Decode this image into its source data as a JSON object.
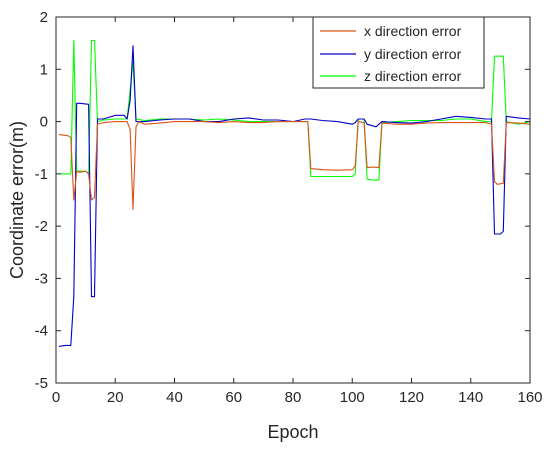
{
  "chart_data": {
    "type": "line",
    "xlabel": "Epoch",
    "ylabel": "Coordinate error(m)",
    "xlim": [
      0,
      160
    ],
    "ylim": [
      -5,
      2
    ],
    "xticks": [
      0,
      20,
      40,
      60,
      80,
      100,
      120,
      140,
      160
    ],
    "yticks": [
      -5,
      -4,
      -3,
      -2,
      -1,
      0,
      1,
      2
    ],
    "grid": false,
    "legend_position": "top-right",
    "series": [
      {
        "name": "x direction error",
        "color": "#d95319",
        "points": [
          [
            1,
            -0.25
          ],
          [
            4,
            -0.27
          ],
          [
            5,
            -0.3
          ],
          [
            6,
            -1.5
          ],
          [
            7,
            -0.95
          ],
          [
            8,
            -0.97
          ],
          [
            10,
            -0.95
          ],
          [
            11,
            -1.0
          ],
          [
            12,
            -1.5
          ],
          [
            13,
            -1.45
          ],
          [
            14,
            -0.05
          ],
          [
            16,
            -0.02
          ],
          [
            20,
            0.0
          ],
          [
            24,
            0.0
          ],
          [
            25,
            -0.15
          ],
          [
            26,
            -1.68
          ],
          [
            27,
            -0.1
          ],
          [
            28,
            0.0
          ],
          [
            30,
            -0.05
          ],
          [
            35,
            -0.03
          ],
          [
            40,
            0.0
          ],
          [
            45,
            0.0
          ],
          [
            50,
            0.0
          ],
          [
            55,
            -0.02
          ],
          [
            60,
            0.0
          ],
          [
            65,
            -0.02
          ],
          [
            70,
            -0.02
          ],
          [
            75,
            0.0
          ],
          [
            80,
            0.0
          ],
          [
            84,
            0.0
          ],
          [
            85,
            0.0
          ],
          [
            86,
            -0.9
          ],
          [
            90,
            -0.92
          ],
          [
            95,
            -0.93
          ],
          [
            100,
            -0.92
          ],
          [
            101,
            -0.85
          ],
          [
            102,
            0.0
          ],
          [
            104,
            -0.02
          ],
          [
            105,
            -0.88
          ],
          [
            107,
            -0.87
          ],
          [
            109,
            -0.88
          ],
          [
            110,
            -0.03
          ],
          [
            115,
            -0.05
          ],
          [
            120,
            -0.05
          ],
          [
            125,
            -0.03
          ],
          [
            130,
            -0.02
          ],
          [
            135,
            -0.02
          ],
          [
            140,
            -0.02
          ],
          [
            145,
            -0.02
          ],
          [
            147,
            -0.05
          ],
          [
            148,
            -1.15
          ],
          [
            149,
            -1.2
          ],
          [
            151,
            -1.18
          ],
          [
            152,
            -0.02
          ],
          [
            156,
            -0.03
          ],
          [
            160,
            -0.05
          ]
        ]
      },
      {
        "name": "y direction error",
        "color": "#0000c8",
        "points": [
          [
            1,
            -4.3
          ],
          [
            3,
            -4.28
          ],
          [
            5,
            -4.28
          ],
          [
            6,
            -3.35
          ],
          [
            7,
            0.35
          ],
          [
            8,
            0.35
          ],
          [
            11,
            0.33
          ],
          [
            12,
            -3.35
          ],
          [
            13,
            -3.35
          ],
          [
            14,
            0.05
          ],
          [
            16,
            0.05
          ],
          [
            20,
            0.12
          ],
          [
            23,
            0.12
          ],
          [
            24,
            0.05
          ],
          [
            25,
            0.4
          ],
          [
            26,
            1.45
          ],
          [
            27,
            0.0
          ],
          [
            30,
            0.0
          ],
          [
            35,
            0.03
          ],
          [
            40,
            0.05
          ],
          [
            45,
            0.05
          ],
          [
            50,
            0.0
          ],
          [
            55,
            0.0
          ],
          [
            60,
            0.05
          ],
          [
            65,
            0.07
          ],
          [
            70,
            0.03
          ],
          [
            75,
            0.03
          ],
          [
            80,
            0.0
          ],
          [
            84,
            0.05
          ],
          [
            86,
            0.05
          ],
          [
            90,
            0.02
          ],
          [
            95,
            0.0
          ],
          [
            100,
            -0.05
          ],
          [
            101,
            -0.02
          ],
          [
            102,
            0.05
          ],
          [
            104,
            0.05
          ],
          [
            105,
            -0.05
          ],
          [
            108,
            -0.1
          ],
          [
            110,
            0.0
          ],
          [
            115,
            -0.02
          ],
          [
            120,
            -0.03
          ],
          [
            125,
            0.0
          ],
          [
            130,
            0.05
          ],
          [
            135,
            0.1
          ],
          [
            140,
            0.08
          ],
          [
            145,
            0.05
          ],
          [
            147,
            0.05
          ],
          [
            148,
            -2.15
          ],
          [
            150,
            -2.15
          ],
          [
            151,
            -2.1
          ],
          [
            152,
            0.1
          ],
          [
            156,
            0.07
          ],
          [
            160,
            0.05
          ]
        ]
      },
      {
        "name": "z direction error",
        "color": "#00ff00",
        "points": [
          [
            1,
            -1.0
          ],
          [
            4,
            -1.0
          ],
          [
            5,
            -1.0
          ],
          [
            6,
            1.55
          ],
          [
            7,
            -0.95
          ],
          [
            10,
            -0.95
          ],
          [
            11,
            -1.0
          ],
          [
            12,
            1.55
          ],
          [
            13,
            1.55
          ],
          [
            14,
            0.0
          ],
          [
            16,
            0.03
          ],
          [
            20,
            0.05
          ],
          [
            24,
            0.05
          ],
          [
            25,
            0.6
          ],
          [
            26,
            1.15
          ],
          [
            27,
            0.05
          ],
          [
            30,
            0.02
          ],
          [
            35,
            0.05
          ],
          [
            40,
            0.05
          ],
          [
            45,
            0.05
          ],
          [
            50,
            0.03
          ],
          [
            55,
            0.05
          ],
          [
            60,
            0.03
          ],
          [
            65,
            0.0
          ],
          [
            70,
            0.0
          ],
          [
            75,
            0.0
          ],
          [
            80,
            0.0
          ],
          [
            84,
            0.0
          ],
          [
            85,
            0.0
          ],
          [
            86,
            -1.05
          ],
          [
            90,
            -1.05
          ],
          [
            95,
            -1.05
          ],
          [
            100,
            -1.05
          ],
          [
            101,
            -1.0
          ],
          [
            102,
            0.05
          ],
          [
            104,
            0.05
          ],
          [
            105,
            -1.1
          ],
          [
            107,
            -1.12
          ],
          [
            109,
            -1.12
          ],
          [
            110,
            -0.02
          ],
          [
            115,
            0.0
          ],
          [
            120,
            0.02
          ],
          [
            125,
            0.02
          ],
          [
            130,
            0.02
          ],
          [
            135,
            0.05
          ],
          [
            140,
            0.05
          ],
          [
            145,
            0.0
          ],
          [
            147,
            0.0
          ],
          [
            148,
            1.25
          ],
          [
            151,
            1.25
          ],
          [
            152,
            0.0
          ],
          [
            156,
            -0.05
          ],
          [
            160,
            0.0
          ]
        ]
      }
    ]
  }
}
